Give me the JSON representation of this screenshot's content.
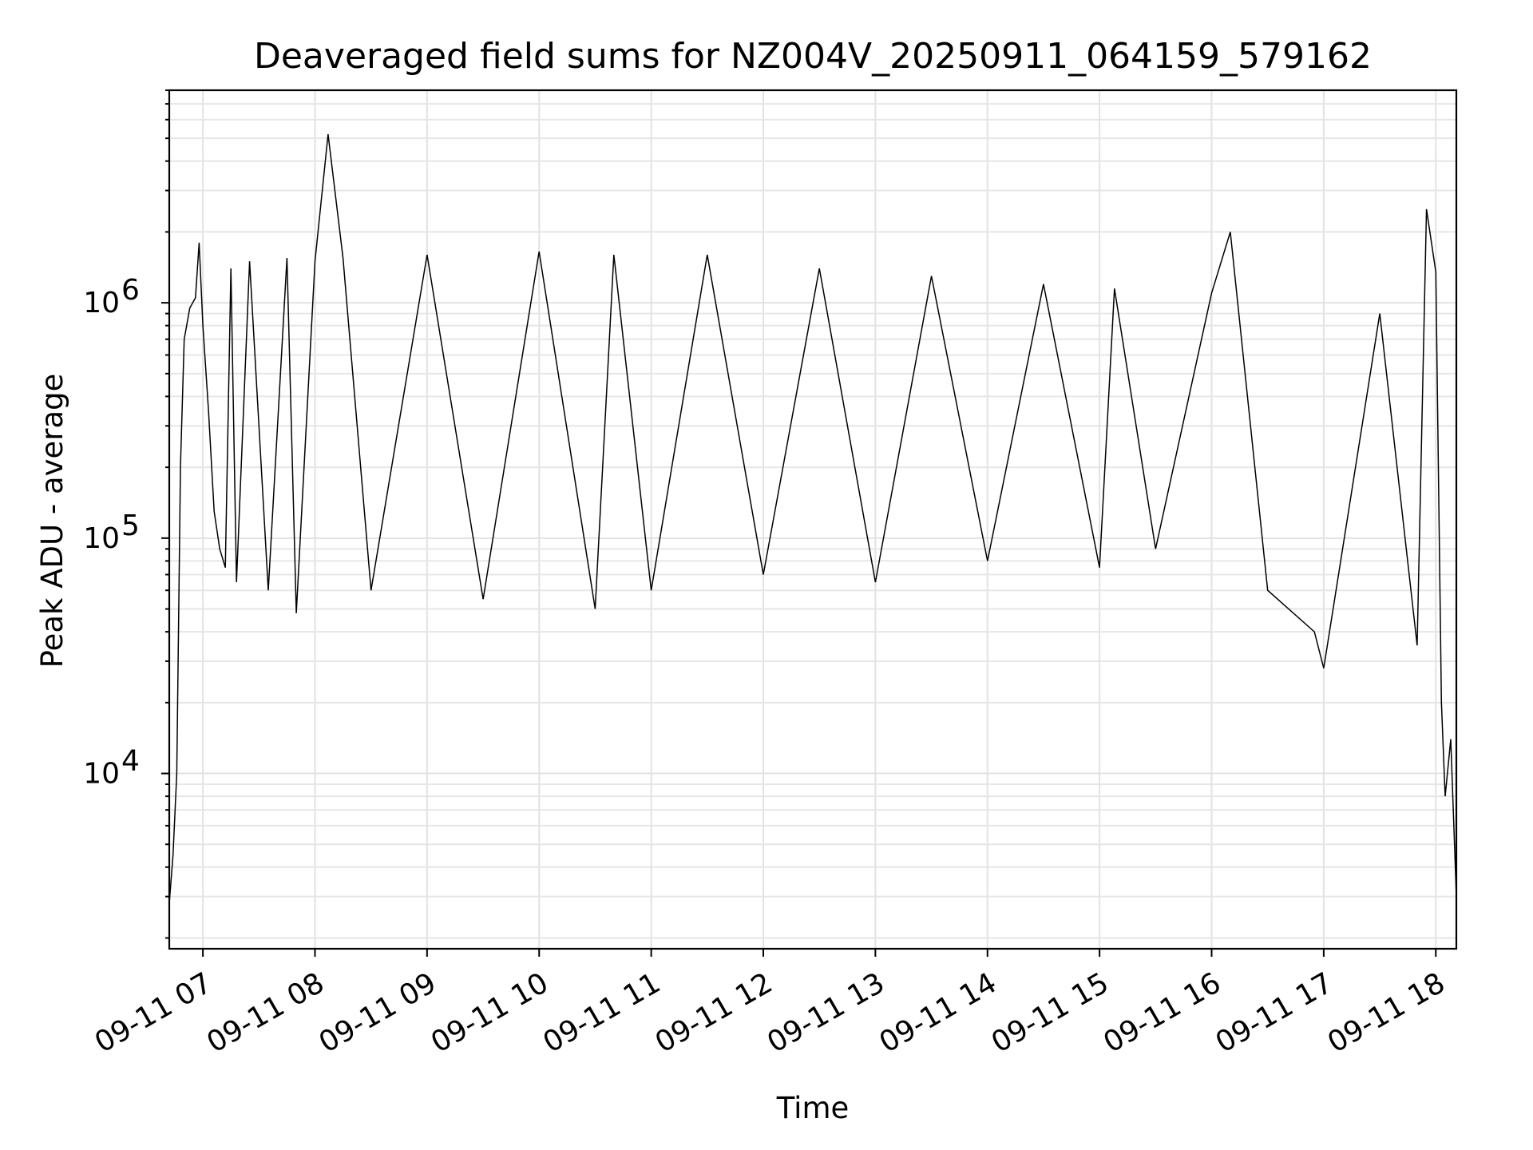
{
  "chart_data": {
    "type": "line",
    "title": "Deaveraged field sums for NZ004V_20250911_064159_579162",
    "xlabel": "Time",
    "ylabel": "Peak ADU - average",
    "yscale": "log",
    "xlim": [
      "2025-09-11T06:42",
      "2025-09-11T18:11"
    ],
    "ylim": [
      1800,
      8000000
    ],
    "grid": true,
    "x_ticks": [
      {
        "value": "2025-09-11T07:00",
        "label": "09-11 07"
      },
      {
        "value": "2025-09-11T08:00",
        "label": "09-11 08"
      },
      {
        "value": "2025-09-11T09:00",
        "label": "09-11 09"
      },
      {
        "value": "2025-09-11T10:00",
        "label": "09-11 10"
      },
      {
        "value": "2025-09-11T11:00",
        "label": "09-11 11"
      },
      {
        "value": "2025-09-11T12:00",
        "label": "09-11 12"
      },
      {
        "value": "2025-09-11T13:00",
        "label": "09-11 13"
      },
      {
        "value": "2025-09-11T14:00",
        "label": "09-11 14"
      },
      {
        "value": "2025-09-11T15:00",
        "label": "09-11 15"
      },
      {
        "value": "2025-09-11T16:00",
        "label": "09-11 16"
      },
      {
        "value": "2025-09-11T17:00",
        "label": "09-11 17"
      },
      {
        "value": "2025-09-11T18:00",
        "label": "09-11 18"
      }
    ],
    "y_ticks": [
      {
        "value": 10000,
        "base": "10",
        "exp": "4"
      },
      {
        "value": 100000,
        "base": "10",
        "exp": "5"
      },
      {
        "value": 1000000,
        "base": "10",
        "exp": "6"
      }
    ],
    "series": [
      {
        "color": "#000000",
        "x": [
          "2025-09-11T06:42",
          "2025-09-11T06:44",
          "2025-09-11T06:46",
          "2025-09-11T06:48",
          "2025-09-11T06:50",
          "2025-09-11T06:53",
          "2025-09-11T06:56",
          "2025-09-11T06:58",
          "2025-09-11T07:00",
          "2025-09-11T07:03",
          "2025-09-11T07:06",
          "2025-09-11T07:09",
          "2025-09-11T07:12",
          "2025-09-11T07:15",
          "2025-09-11T07:18",
          "2025-09-11T07:25",
          "2025-09-11T07:35",
          "2025-09-11T07:45",
          "2025-09-11T07:50",
          "2025-09-11T08:00",
          "2025-09-11T08:07",
          "2025-09-11T08:15",
          "2025-09-11T08:30",
          "2025-09-11T09:00",
          "2025-09-11T09:30",
          "2025-09-11T10:00",
          "2025-09-11T10:30",
          "2025-09-11T10:40",
          "2025-09-11T11:00",
          "2025-09-11T11:30",
          "2025-09-11T12:00",
          "2025-09-11T12:30",
          "2025-09-11T13:00",
          "2025-09-11T13:30",
          "2025-09-11T14:00",
          "2025-09-11T14:30",
          "2025-09-11T15:00",
          "2025-09-11T15:08",
          "2025-09-11T15:30",
          "2025-09-11T16:00",
          "2025-09-11T16:10",
          "2025-09-11T16:30",
          "2025-09-11T16:55",
          "2025-09-11T17:00",
          "2025-09-11T17:30",
          "2025-09-11T17:50",
          "2025-09-11T17:55",
          "2025-09-11T18:00",
          "2025-09-11T18:03",
          "2025-09-11T18:05",
          "2025-09-11T18:08",
          "2025-09-11T18:11"
        ],
        "y": [
          2800,
          4500,
          10000,
          200000,
          700000,
          950000,
          1050000,
          1800000,
          800000,
          350000,
          130000,
          90000,
          75000,
          1400000,
          65000,
          1500000,
          60000,
          1550000,
          48000,
          1500000,
          5200000,
          1550000,
          60000,
          1600000,
          55000,
          1650000,
          50000,
          1600000,
          60000,
          1600000,
          70000,
          1400000,
          65000,
          1300000,
          80000,
          1200000,
          75000,
          1150000,
          90000,
          1100000,
          2000000,
          60000,
          40000,
          28000,
          900000,
          35000,
          2500000,
          1350000,
          20000,
          8000,
          14000,
          3000
        ]
      }
    ]
  }
}
